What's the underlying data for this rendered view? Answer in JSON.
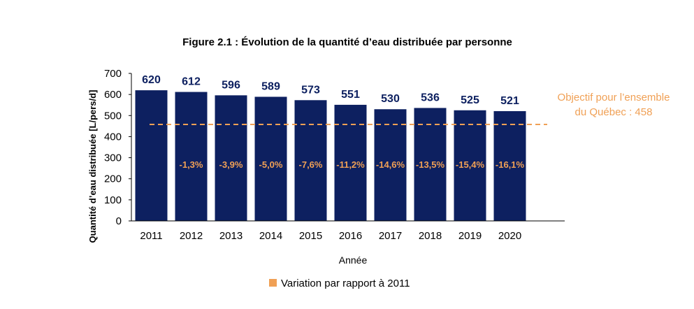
{
  "chart_data": {
    "type": "bar",
    "title": "Figure 2.1 : Évolution de la quantité d’eau distribuée par personne",
    "xlabel": "Année",
    "ylabel": "Quantité d’eau distribuée [L/pers/d]",
    "ylim": [
      0,
      700
    ],
    "yticks": [
      "0",
      "100",
      "200",
      "300",
      "400",
      "500",
      "600",
      "700"
    ],
    "categories": [
      "2011",
      "2012",
      "2013",
      "2014",
      "2015",
      "2016",
      "2017",
      "2018",
      "2019",
      "2020"
    ],
    "series": [
      {
        "name": "",
        "values": [
          620,
          612,
          596,
          589,
          573,
          551,
          530,
          536,
          525,
          521
        ],
        "value_labels": [
          "620",
          "612",
          "596",
          "589",
          "573",
          "551",
          "530",
          "536",
          "525",
          "521"
        ]
      }
    ],
    "variation": {
      "name": "Variation par rapport à 2011",
      "labels": [
        "",
        "-1,3%",
        "-3,9%",
        "-5,0%",
        "-7,6%",
        "-11,2%",
        "-14,6%",
        "-13,5%",
        "-15,4%",
        "-16,1%"
      ]
    },
    "reference_line": {
      "value": 458,
      "label_line1": "Objectif pour l’ensemble",
      "label_line2": "du Québec : 458"
    },
    "legend": {
      "position": "bottom",
      "entries": [
        "Variation par rapport à 2011"
      ]
    },
    "grid": false
  },
  "colors": {
    "bar": "#0d2060",
    "value_label": "#0d2060",
    "accent": "#f0a055",
    "axis": "#000000"
  }
}
